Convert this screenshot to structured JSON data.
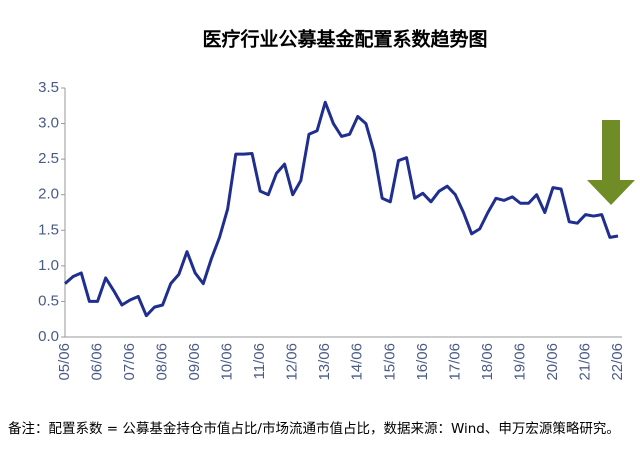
{
  "chart_data": {
    "type": "line",
    "title": "医疗行业公募基金配置系数趋势图",
    "categories": [
      "05/06",
      null,
      null,
      null,
      "06/06",
      null,
      null,
      null,
      "07/06",
      null,
      null,
      null,
      "08/06",
      null,
      null,
      null,
      "09/06",
      null,
      null,
      null,
      "10/06",
      null,
      null,
      null,
      "11/06",
      null,
      null,
      null,
      "12/06",
      null,
      null,
      null,
      "13/06",
      null,
      null,
      null,
      "14/06",
      null,
      null,
      null,
      "15/06",
      null,
      null,
      null,
      "16/06",
      null,
      null,
      null,
      "17/06",
      null,
      null,
      null,
      "18/06",
      null,
      null,
      null,
      "19/06",
      null,
      null,
      null,
      "20/06",
      null,
      null,
      null,
      "21/06",
      null,
      null,
      null,
      "22/06"
    ],
    "values": [
      0.75,
      0.85,
      0.9,
      0.5,
      0.5,
      0.83,
      0.65,
      0.45,
      0.52,
      0.57,
      0.3,
      0.42,
      0.45,
      0.75,
      0.88,
      1.2,
      0.9,
      0.75,
      1.1,
      1.4,
      1.8,
      2.57,
      2.57,
      2.58,
      2.05,
      2.0,
      2.3,
      2.43,
      2.0,
      2.2,
      2.85,
      2.9,
      3.3,
      3.0,
      2.82,
      2.85,
      3.1,
      3.0,
      2.6,
      1.95,
      1.9,
      2.48,
      2.52,
      1.95,
      2.02,
      1.9,
      2.05,
      2.12,
      2.0,
      1.75,
      1.45,
      1.52,
      1.75,
      1.95,
      1.92,
      1.97,
      1.88,
      1.88,
      2.0,
      1.75,
      2.1,
      2.08,
      1.62,
      1.6,
      1.72,
      1.7,
      1.72,
      1.4,
      1.42
    ],
    "color": "#1f2e8f",
    "ylim": [
      0,
      3.5
    ],
    "yticks": [
      {
        "value": 0,
        "label": "0.0"
      },
      {
        "value": 0.5,
        "label": "0.5"
      },
      {
        "value": 1,
        "label": "1.0"
      },
      {
        "value": 1.5,
        "label": "1.5"
      },
      {
        "value": 2,
        "label": "2.0"
      },
      {
        "value": 2.5,
        "label": "2.5"
      },
      {
        "value": 3,
        "label": "3.0"
      },
      {
        "value": 3.5,
        "label": "3.5"
      }
    ],
    "note": "备注：配置系数 = 公募基金持仓市值占比/市场流通市值占比，数据来源：Wind、申万宏源策略研究。"
  }
}
